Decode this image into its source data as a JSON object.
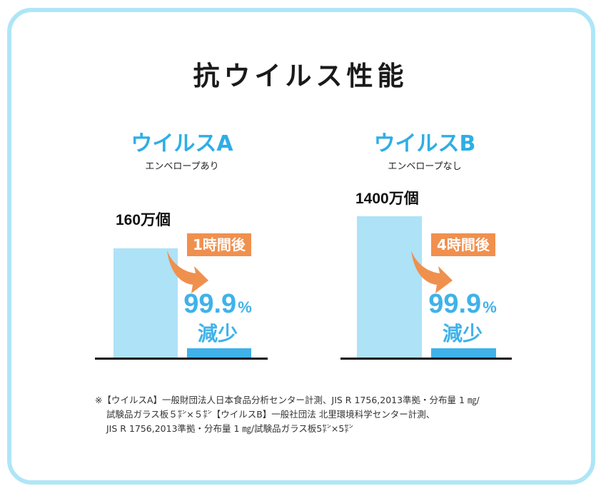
{
  "title": "抗ウイルス性能",
  "colors": {
    "border": "#aee6f7",
    "before_bar": "#aee2f7",
    "after_bar": "#3fb2ea",
    "accent": "#2eaee6",
    "badge": "#f0904e",
    "arrow": "#f0904e"
  },
  "chart_data": [
    {
      "type": "bar",
      "title": "ウイルスA",
      "subtitle": "エンベロープあり",
      "categories": [
        "",
        "1時間後"
      ],
      "values": [
        1600000,
        1600
      ],
      "value_labels": [
        "160万個",
        ""
      ],
      "time_label": "1時間後",
      "reduction_value": "99.9",
      "reduction_unit": "%",
      "reduction_text": "減少"
    },
    {
      "type": "bar",
      "title": "ウイルスB",
      "subtitle": "エンベロープなし",
      "categories": [
        "",
        "4時間後"
      ],
      "values": [
        14000000,
        14000
      ],
      "value_labels": [
        "1400万個",
        ""
      ],
      "time_label": "4時間後",
      "reduction_value": "99.9",
      "reduction_unit": "%",
      "reduction_text": "減少"
    }
  ],
  "footnote": {
    "line1": "※【ウイルスA】一般財団法人日本食品分析センター計測、JIS R 1756,2013準拠・分布量 1 ㎎/",
    "line2": "試験品ガラス板５㌢×５㌢【ウイルスB】一般社団法 北里環境科学センター計測、",
    "line3": "JIS R 1756,2013準拠・分布量 1 ㎎/試験品ガラス板5㌢×5㌢"
  }
}
